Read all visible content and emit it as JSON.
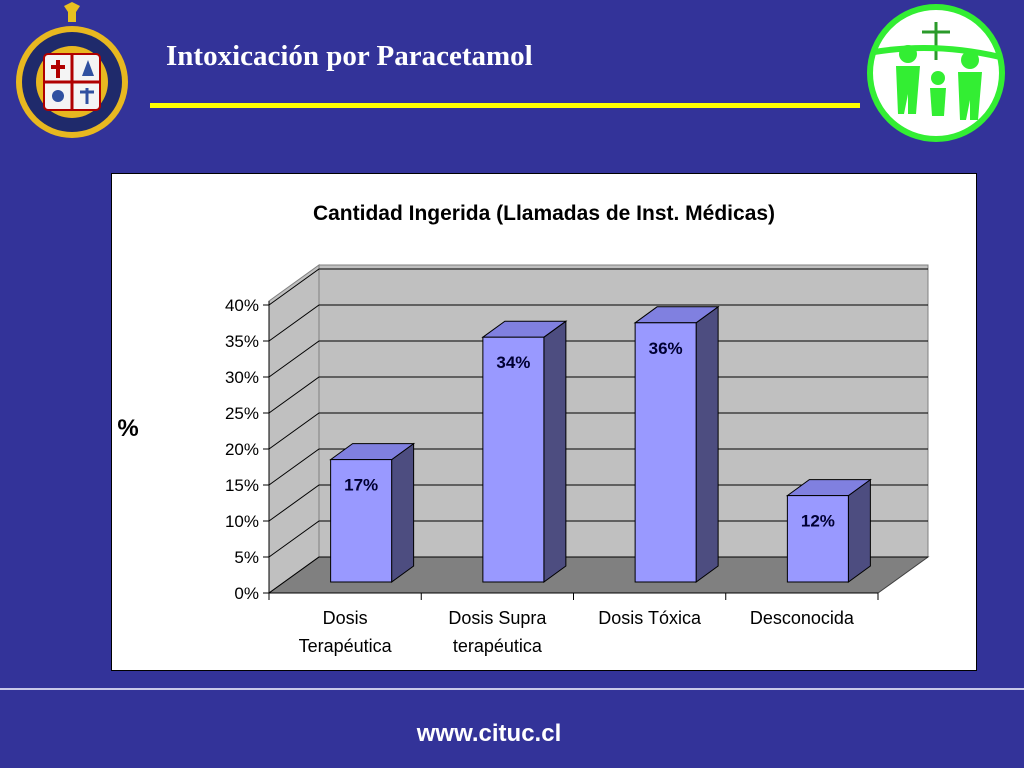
{
  "slide": {
    "title": "Intoxicación por Paracetamol",
    "footer_url": "www.cituc.cl"
  },
  "colors": {
    "background": "#333399",
    "title_rule": "#ffff00",
    "bar_front": "#9999ff",
    "bar_top": "#8080e0",
    "bar_side": "#4d4d80",
    "logo_green": "#33ee33"
  },
  "icons": {
    "left_logo": "university-crest-icon",
    "right_logo": "family-cross-logo-icon"
  },
  "chart_data": {
    "type": "bar",
    "title": "Cantidad Ingerida (Llamadas de Inst. Médicas)",
    "xlabel": "",
    "ylabel": "%",
    "categories": [
      [
        "Dosis",
        "Terapéutica"
      ],
      [
        "Dosis Supra",
        "terapéutica"
      ],
      [
        "Dosis Tóxica"
      ],
      [
        "Desconocida"
      ]
    ],
    "values": [
      17,
      34,
      36,
      12
    ],
    "data_labels": [
      "17%",
      "34%",
      "36%",
      "12%"
    ],
    "ylim": [
      0,
      40
    ],
    "yticks": [
      "0%",
      "5%",
      "10%",
      "15%",
      "20%",
      "25%",
      "30%",
      "35%",
      "40%"
    ],
    "grid": true,
    "legend": "none"
  }
}
